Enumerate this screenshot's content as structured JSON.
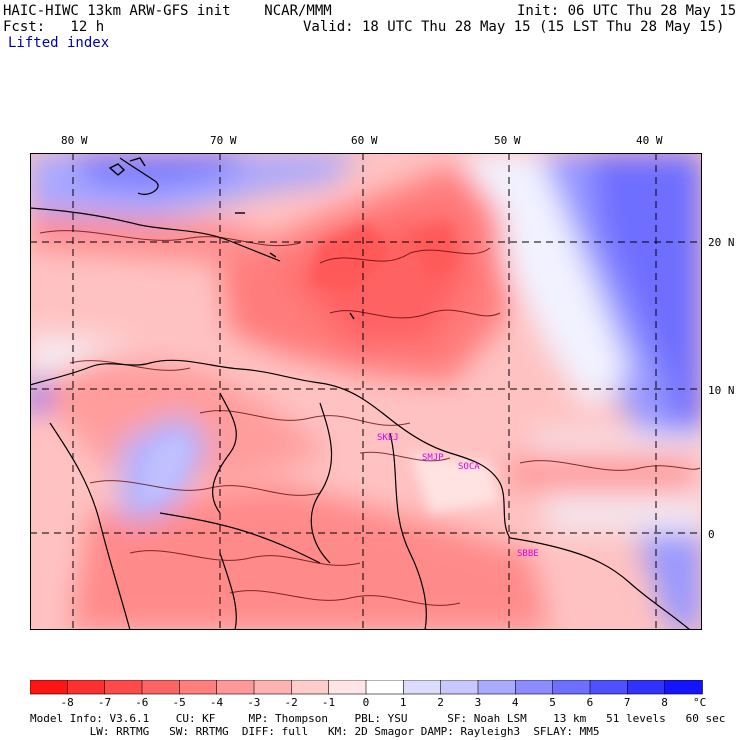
{
  "header": {
    "title": "HAIC-HIWC 13km ARW-GFS init    NCAR/MMM",
    "forecast": "Fcst:   12 h",
    "field": "Lifted index",
    "init": "Init: 06 UTC Thu 28 May 15",
    "valid": "Valid: 18 UTC Thu 28 May 15 (15 LST Thu 28 May 15)"
  },
  "axes": {
    "lon_labels": [
      "80 W",
      "70 W",
      "60 W",
      "50 W",
      "40 W"
    ],
    "lat_labels": [
      "20 N",
      "10 N",
      "0"
    ]
  },
  "stations": [
    "SKEJ",
    "SMJP",
    "SOCA",
    "SBBE"
  ],
  "colorbar": {
    "unit": "°C",
    "ticks": [
      "-8",
      "-7",
      "-6",
      "-5",
      "-4",
      "-3",
      "-2",
      "-1",
      "0",
      "1",
      "2",
      "3",
      "4",
      "5",
      "6",
      "7",
      "8"
    ],
    "colors": [
      "#ff1414",
      "#ff3030",
      "#ff4a4a",
      "#ff6464",
      "#ff7e7e",
      "#ff9898",
      "#ffb2b2",
      "#ffcccc",
      "#ffe6e6",
      "#ffffff",
      "#dcdcff",
      "#c8c8ff",
      "#aaaaff",
      "#8c8cff",
      "#6e6eff",
      "#5050ff",
      "#3232ff",
      "#1414ff"
    ]
  },
  "footer": {
    "line1": "Model Info: V3.6.1    CU: KF     MP: Thompson    PBL: YSU      SF: Noah LSM    13 km   51 levels   60 sec",
    "line2": "         LW: RRTMG   SW: RRTMG  DIFF: full   KM: 2D Smagor DAMP: Rayleigh3  SFLAY: MM5"
  }
}
